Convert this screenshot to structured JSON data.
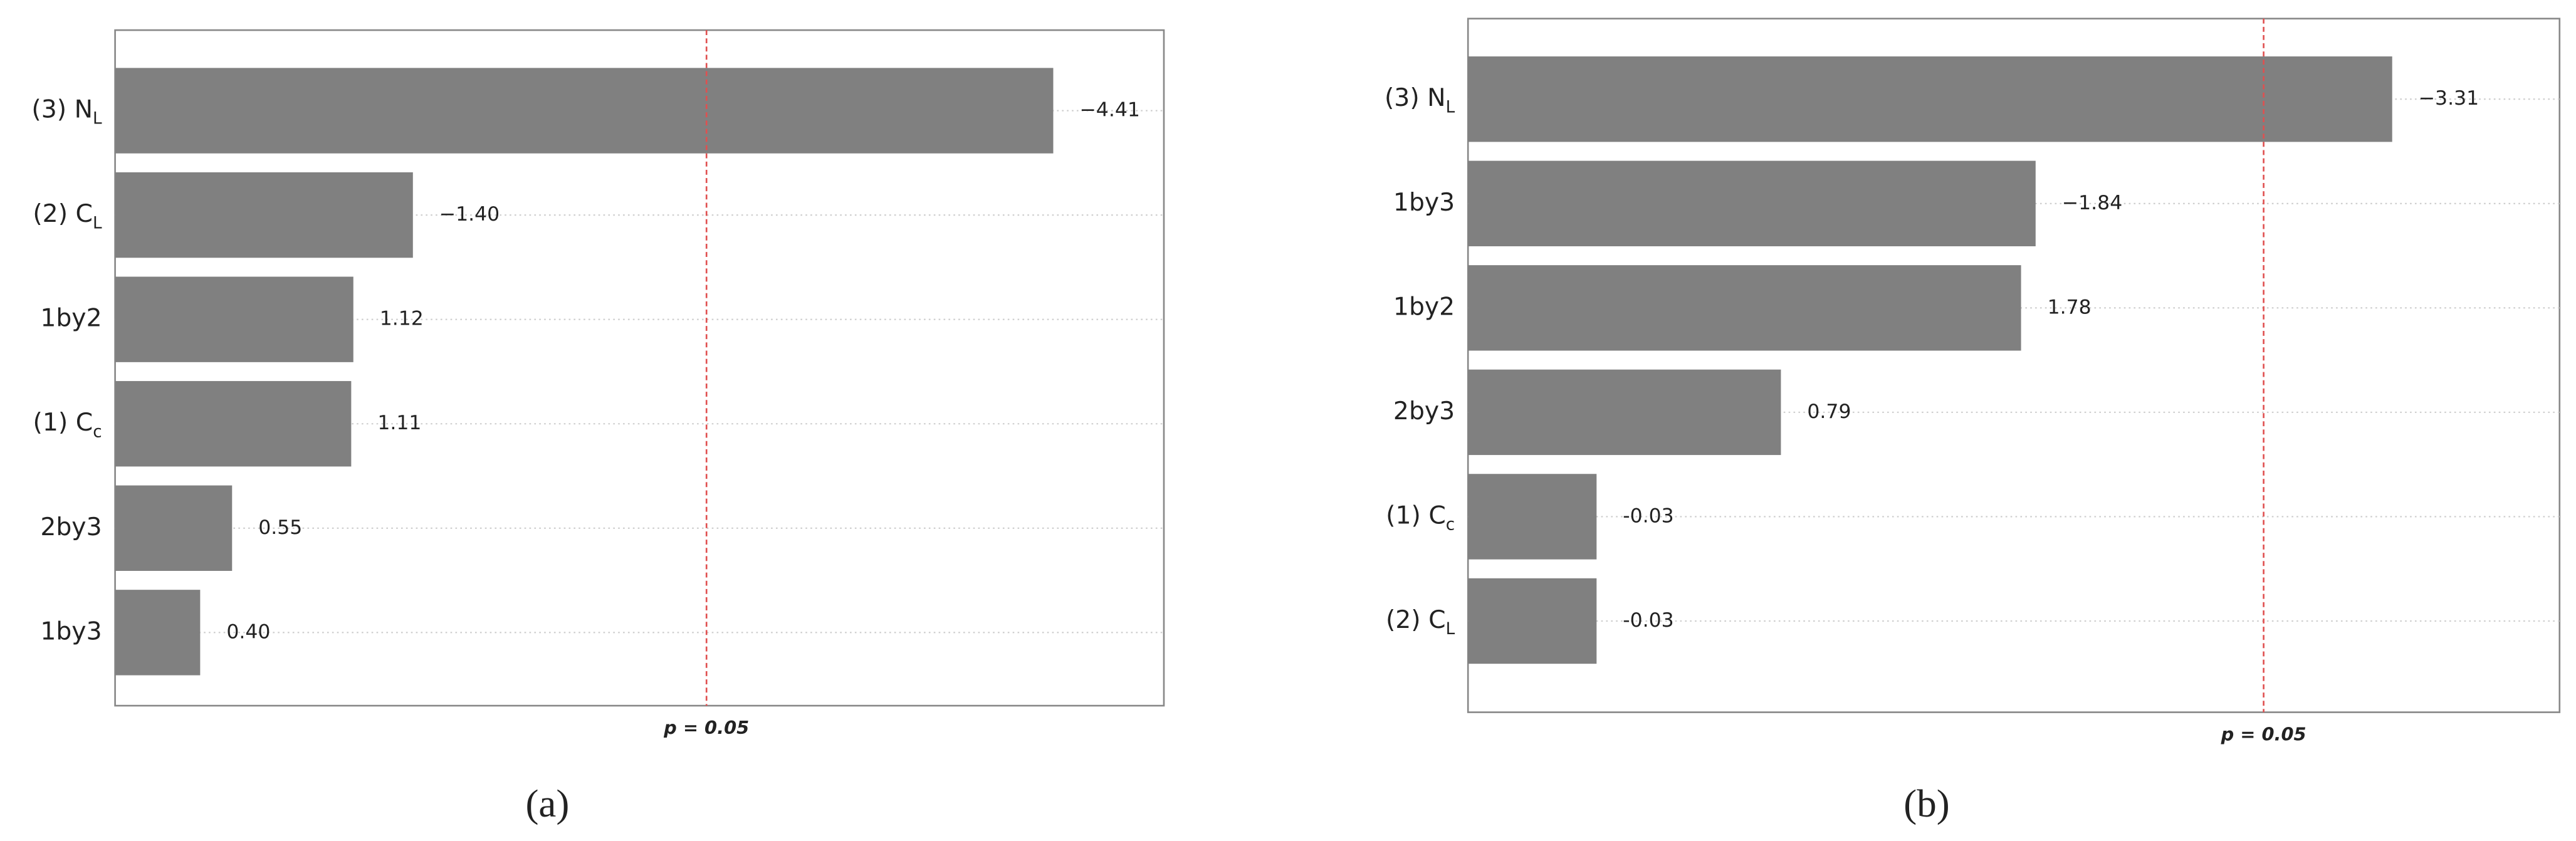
{
  "chart_data": [
    {
      "type": "pareto",
      "panel_label": "(a)",
      "categories": [
        "(3) N",
        "(2) C",
        "1by2",
        "(1) C",
        "2by3",
        "1by3"
      ],
      "category_subscripts": [
        "L",
        "L",
        null,
        "c",
        null,
        null
      ],
      "values": [
        -4.41,
        -1.4,
        1.12,
        1.11,
        0.55,
        0.4
      ],
      "value_labels": [
        "−4.41",
        "−1.40",
        "1.12",
        "1.11",
        "0.55",
        "0.40"
      ],
      "color": "#808080",
      "xlim": [
        0,
        4.93
      ],
      "ref_line": {
        "value": 2.78,
        "label": "p = 0.05",
        "color": "#e05050"
      },
      "grid": true
    },
    {
      "type": "pareto",
      "panel_label": "(b)",
      "categories": [
        "(3) N",
        "1by3",
        "1by2",
        "2by3",
        "(1) C",
        "(2) C"
      ],
      "category_subscripts": [
        "L",
        null,
        null,
        null,
        "c",
        "L"
      ],
      "values": [
        -3.31,
        -1.84,
        1.78,
        0.79,
        -0.03,
        -0.03
      ],
      "value_labels": [
        "−3.31",
        "−1.84",
        "1.78",
        "0.79",
        "-0.03",
        "-0.03"
      ],
      "color": "#808080",
      "xlim": [
        -0.5,
        4.0
      ],
      "ref_line": {
        "value": 2.78,
        "label": "p = 0.05",
        "color": "#e05050"
      },
      "grid": true
    }
  ]
}
